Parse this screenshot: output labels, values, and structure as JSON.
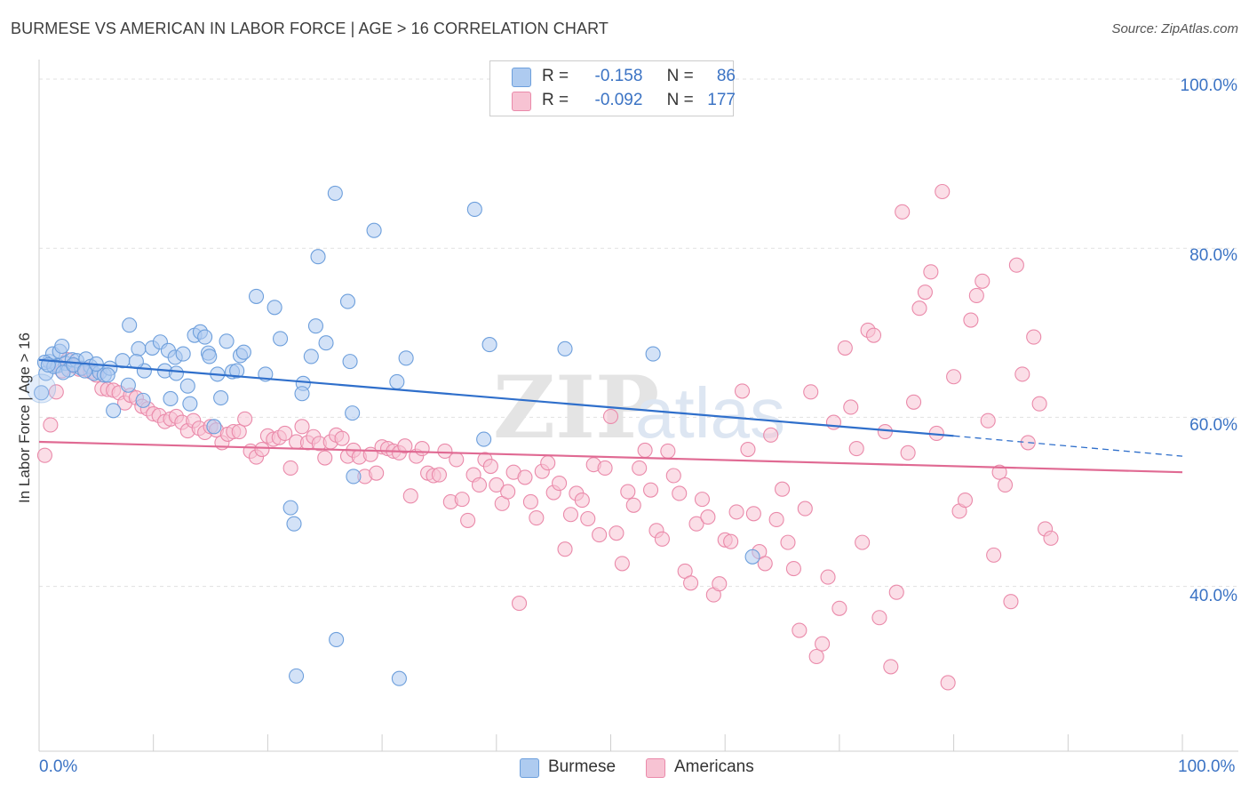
{
  "header": {
    "title": "BURMESE VS AMERICAN IN LABOR FORCE | AGE > 16 CORRELATION CHART",
    "source": "Source: ZipAtlas.com"
  },
  "legend": {
    "rows": [
      {
        "r_label": "R =",
        "r_value": "-0.158",
        "n_label": "N =",
        "n_value": "86"
      },
      {
        "r_label": "R =",
        "r_value": "-0.092",
        "n_label": "N =",
        "n_value": "177"
      }
    ],
    "bottom": [
      "Burmese",
      "Americans"
    ]
  },
  "watermark": {
    "zip": "ZIP",
    "atlas": "atlas"
  },
  "colors": {
    "burmese_fill": "#aecbf0",
    "burmese_stroke": "#6d9fdc",
    "burmese_line": "#2f6fcb",
    "american_fill": "#f7c3d3",
    "american_stroke": "#ea8aaa",
    "american_line": "#e06a93",
    "axis_label": "#3b73c4",
    "grid": "#e1e1e1"
  },
  "chart_data": {
    "type": "scatter",
    "title": "BURMESE VS AMERICAN IN LABOR FORCE | AGE > 16 CORRELATION CHART",
    "ylabel": "In Labor Force | Age > 16",
    "xlabel": "",
    "x_tick_labels": [
      "0.0%",
      "100.0%"
    ],
    "y_tick_labels": [
      "40.0%",
      "60.0%",
      "80.0%",
      "100.0%"
    ],
    "y_ticks": [
      40,
      60,
      80,
      100
    ],
    "xlim": [
      0,
      100
    ],
    "ylim": [
      20.5,
      102
    ],
    "grid": true,
    "legend_position": "top-center",
    "series": [
      {
        "name": "Burmese",
        "r": -0.158,
        "n": 86,
        "trend": {
          "x0": 0,
          "y0": 66.8,
          "x1": 80,
          "y1": 57.8,
          "dashed_to_x": 100,
          "dashed_to_y": 55.4
        },
        "points": [
          [
            0.6,
            65.2
          ],
          [
            0.9,
            66.6
          ],
          [
            1.2,
            67.5
          ],
          [
            1.6,
            66.1
          ],
          [
            1.8,
            67.8
          ],
          [
            2.0,
            68.4
          ],
          [
            2.3,
            66.4
          ],
          [
            2.6,
            65.6
          ],
          [
            2.9,
            66.8
          ],
          [
            3.3,
            66.7
          ],
          [
            3.7,
            65.8
          ],
          [
            4.1,
            66.9
          ],
          [
            4.5,
            66.0
          ],
          [
            4.8,
            65.2
          ],
          [
            5.3,
            65.3
          ],
          [
            5.7,
            65.0
          ],
          [
            6.2,
            65.8
          ],
          [
            6.5,
            60.8
          ],
          [
            7.3,
            66.7
          ],
          [
            7.8,
            63.8
          ],
          [
            7.9,
            70.9
          ],
          [
            8.7,
            68.1
          ],
          [
            9.1,
            62.0
          ],
          [
            9.2,
            65.5
          ],
          [
            9.9,
            68.2
          ],
          [
            10.6,
            68.9
          ],
          [
            11.0,
            65.5
          ],
          [
            11.3,
            67.9
          ],
          [
            11.5,
            62.2
          ],
          [
            11.9,
            67.1
          ],
          [
            12.6,
            67.5
          ],
          [
            13.0,
            63.7
          ],
          [
            13.2,
            61.6
          ],
          [
            13.6,
            69.7
          ],
          [
            14.1,
            70.1
          ],
          [
            14.5,
            69.5
          ],
          [
            14.8,
            67.6
          ],
          [
            14.9,
            67.2
          ],
          [
            15.3,
            58.9
          ],
          [
            15.6,
            65.1
          ],
          [
            15.9,
            62.3
          ],
          [
            16.4,
            69.0
          ],
          [
            16.9,
            65.4
          ],
          [
            17.3,
            65.5
          ],
          [
            17.6,
            67.3
          ],
          [
            17.9,
            67.7
          ],
          [
            19.0,
            74.3
          ],
          [
            19.8,
            65.1
          ],
          [
            20.6,
            73.0
          ],
          [
            21.1,
            69.3
          ],
          [
            22.0,
            49.3
          ],
          [
            22.3,
            47.4
          ],
          [
            22.5,
            29.4
          ],
          [
            23.1,
            64.0
          ],
          [
            23.0,
            62.8
          ],
          [
            23.8,
            67.2
          ],
          [
            24.2,
            70.8
          ],
          [
            24.4,
            79.0
          ],
          [
            25.1,
            68.8
          ],
          [
            25.9,
            86.5
          ],
          [
            26.0,
            33.7
          ],
          [
            27.0,
            73.7
          ],
          [
            27.2,
            66.6
          ],
          [
            27.4,
            60.5
          ],
          [
            29.3,
            82.1
          ],
          [
            31.3,
            64.2
          ],
          [
            31.5,
            29.1
          ],
          [
            32.1,
            67.0
          ],
          [
            38.1,
            84.6
          ],
          [
            38.9,
            57.4
          ],
          [
            39.4,
            68.6
          ],
          [
            46.0,
            68.1
          ],
          [
            53.7,
            67.5
          ],
          [
            62.4,
            43.5
          ],
          [
            0.2,
            62.9
          ],
          [
            0.5,
            66.5
          ],
          [
            1.3,
            66.0
          ],
          [
            2.1,
            65.3
          ],
          [
            3.0,
            66.2
          ],
          [
            4.0,
            65.5
          ],
          [
            5.0,
            66.3
          ],
          [
            6.0,
            65.0
          ],
          [
            27.5,
            53.0
          ],
          [
            12.0,
            65.2
          ],
          [
            8.5,
            66.6
          ],
          [
            0.8,
            66.2
          ]
        ]
      },
      {
        "name": "Americans",
        "r": -0.092,
        "n": 177,
        "trend": {
          "x0": 0,
          "y0": 57.1,
          "x1": 100,
          "y1": 53.5
        },
        "points": [
          [
            0.5,
            55.5
          ],
          [
            1.0,
            59.1
          ],
          [
            1.5,
            63.0
          ],
          [
            2.0,
            65.5
          ],
          [
            2.5,
            66.8
          ],
          [
            3.0,
            66.1
          ],
          [
            3.5,
            65.7
          ],
          [
            4.0,
            65.7
          ],
          [
            4.5,
            65.4
          ],
          [
            5.0,
            65.0
          ],
          [
            5.5,
            63.4
          ],
          [
            6.0,
            63.3
          ],
          [
            6.5,
            63.2
          ],
          [
            7.0,
            62.9
          ],
          [
            7.5,
            61.7
          ],
          [
            8.0,
            62.6
          ],
          [
            8.5,
            62.3
          ],
          [
            9.0,
            61.3
          ],
          [
            9.5,
            61.0
          ],
          [
            10.0,
            60.4
          ],
          [
            10.5,
            60.2
          ],
          [
            11.0,
            59.5
          ],
          [
            11.5,
            59.8
          ],
          [
            12.0,
            60.1
          ],
          [
            12.5,
            59.4
          ],
          [
            13.0,
            58.4
          ],
          [
            13.5,
            59.6
          ],
          [
            14.0,
            58.7
          ],
          [
            14.5,
            58.2
          ],
          [
            15.0,
            58.9
          ],
          [
            15.5,
            58.5
          ],
          [
            16.0,
            57.0
          ],
          [
            16.5,
            58.0
          ],
          [
            17.0,
            58.3
          ],
          [
            17.5,
            58.3
          ],
          [
            18.0,
            59.8
          ],
          [
            18.5,
            56.0
          ],
          [
            19.0,
            55.3
          ],
          [
            19.5,
            56.2
          ],
          [
            20.0,
            57.8
          ],
          [
            20.5,
            57.4
          ],
          [
            21.0,
            57.6
          ],
          [
            21.5,
            58.1
          ],
          [
            22.0,
            54.0
          ],
          [
            22.5,
            57.1
          ],
          [
            23.0,
            58.9
          ],
          [
            23.5,
            57.0
          ],
          [
            24.0,
            57.7
          ],
          [
            24.5,
            56.9
          ],
          [
            25.0,
            55.2
          ],
          [
            25.5,
            57.1
          ],
          [
            26.0,
            57.9
          ],
          [
            26.5,
            57.5
          ],
          [
            27.0,
            55.4
          ],
          [
            27.5,
            56.1
          ],
          [
            28.0,
            55.3
          ],
          [
            28.5,
            53.0
          ],
          [
            29.0,
            55.6
          ],
          [
            29.5,
            53.4
          ],
          [
            30.0,
            56.5
          ],
          [
            30.5,
            56.3
          ],
          [
            31.0,
            56.0
          ],
          [
            31.5,
            55.8
          ],
          [
            32.0,
            56.6
          ],
          [
            32.5,
            50.7
          ],
          [
            33.0,
            55.4
          ],
          [
            33.5,
            56.3
          ],
          [
            34.0,
            53.4
          ],
          [
            34.5,
            53.1
          ],
          [
            35.0,
            53.2
          ],
          [
            35.5,
            56.0
          ],
          [
            36.0,
            50.0
          ],
          [
            36.5,
            55.0
          ],
          [
            37.0,
            50.3
          ],
          [
            37.5,
            47.8
          ],
          [
            38.0,
            53.2
          ],
          [
            38.5,
            52.0
          ],
          [
            39.0,
            55.0
          ],
          [
            39.5,
            54.2
          ],
          [
            40.0,
            52.0
          ],
          [
            40.5,
            49.8
          ],
          [
            41.0,
            51.2
          ],
          [
            41.5,
            53.5
          ],
          [
            42.0,
            38.0
          ],
          [
            42.5,
            52.9
          ],
          [
            43.0,
            50.0
          ],
          [
            43.5,
            48.1
          ],
          [
            44.0,
            53.6
          ],
          [
            44.5,
            54.6
          ],
          [
            45.0,
            51.1
          ],
          [
            45.5,
            52.2
          ],
          [
            46.0,
            44.4
          ],
          [
            46.5,
            48.5
          ],
          [
            47.0,
            51.0
          ],
          [
            47.5,
            50.2
          ],
          [
            48.0,
            48.0
          ],
          [
            48.5,
            54.4
          ],
          [
            49.0,
            46.1
          ],
          [
            49.5,
            54.0
          ],
          [
            50.0,
            60.1
          ],
          [
            50.5,
            46.3
          ],
          [
            51.0,
            42.7
          ],
          [
            51.5,
            51.2
          ],
          [
            52.0,
            49.6
          ],
          [
            52.5,
            54.0
          ],
          [
            53.0,
            56.1
          ],
          [
            53.5,
            51.4
          ],
          [
            54.0,
            46.6
          ],
          [
            54.5,
            45.6
          ],
          [
            55.0,
            56.0
          ],
          [
            55.5,
            53.1
          ],
          [
            56.0,
            51.0
          ],
          [
            56.5,
            41.8
          ],
          [
            57.0,
            40.4
          ],
          [
            57.5,
            47.4
          ],
          [
            58.0,
            50.3
          ],
          [
            58.5,
            48.2
          ],
          [
            59.0,
            39.0
          ],
          [
            59.5,
            40.3
          ],
          [
            60.0,
            45.5
          ],
          [
            60.5,
            45.3
          ],
          [
            61.0,
            48.8
          ],
          [
            61.5,
            63.1
          ],
          [
            62.0,
            56.2
          ],
          [
            62.5,
            48.6
          ],
          [
            63.0,
            44.1
          ],
          [
            63.5,
            42.7
          ],
          [
            64.0,
            57.9
          ],
          [
            64.5,
            47.9
          ],
          [
            65.0,
            51.5
          ],
          [
            65.5,
            45.2
          ],
          [
            66.0,
            42.1
          ],
          [
            66.5,
            34.8
          ],
          [
            67.0,
            49.2
          ],
          [
            67.5,
            63.0
          ],
          [
            68.0,
            31.7
          ],
          [
            68.5,
            33.2
          ],
          [
            69.0,
            41.1
          ],
          [
            69.5,
            59.4
          ],
          [
            70.0,
            37.4
          ],
          [
            70.5,
            68.2
          ],
          [
            71.0,
            61.2
          ],
          [
            71.5,
            56.3
          ],
          [
            72.0,
            45.2
          ],
          [
            72.5,
            70.3
          ],
          [
            73.0,
            69.7
          ],
          [
            73.5,
            36.3
          ],
          [
            74.0,
            58.3
          ],
          [
            74.5,
            30.5
          ],
          [
            75.0,
            39.3
          ],
          [
            75.5,
            84.3
          ],
          [
            76.0,
            55.8
          ],
          [
            76.5,
            61.8
          ],
          [
            77.0,
            72.9
          ],
          [
            77.5,
            74.8
          ],
          [
            78.0,
            77.2
          ],
          [
            78.5,
            58.1
          ],
          [
            79.0,
            86.7
          ],
          [
            79.5,
            28.6
          ],
          [
            80.0,
            64.8
          ],
          [
            80.5,
            48.9
          ],
          [
            81.0,
            50.2
          ],
          [
            81.5,
            71.5
          ],
          [
            82.0,
            74.4
          ],
          [
            82.5,
            76.1
          ],
          [
            83.0,
            59.6
          ],
          [
            83.5,
            43.7
          ],
          [
            84.0,
            53.5
          ],
          [
            84.5,
            52.0
          ],
          [
            85.0,
            38.2
          ],
          [
            85.5,
            78.0
          ],
          [
            86.0,
            65.1
          ],
          [
            86.5,
            57.0
          ],
          [
            87.0,
            69.5
          ],
          [
            87.5,
            61.6
          ],
          [
            88.0,
            46.8
          ],
          [
            88.5,
            45.7
          ]
        ]
      }
    ]
  }
}
